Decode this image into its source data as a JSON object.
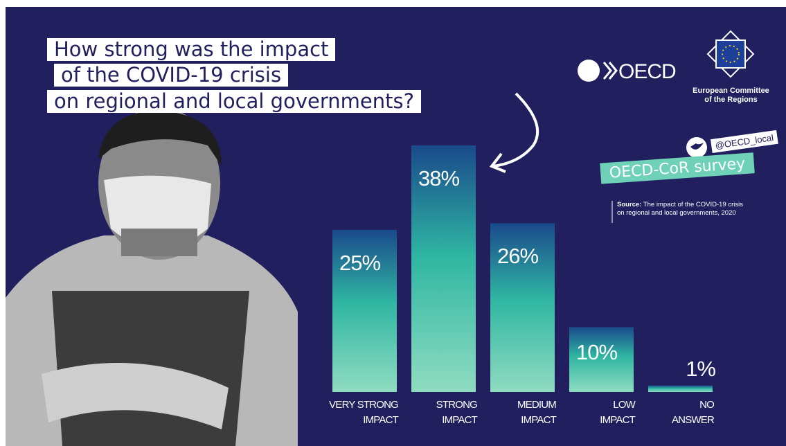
{
  "title": [
    "How strong was the impact",
    "of the COVID-19 crisis",
    "on regional and local governments?"
  ],
  "logos": {
    "oecd": "OECD",
    "cor": "European Committee\nof the Regions"
  },
  "twitter_handle": "@OECD_local",
  "survey": "OECD-CoR survey",
  "source_label": "Source:",
  "source_text": "The impact of the COVID-19 crisis\non regional and local governments, 2020",
  "chart_data": {
    "type": "bar",
    "categories": [
      "VERY STRONG\nIMPACT",
      "STRONG\nIMPACT",
      "MEDIUM\nIMPACT",
      "LOW\nIMPACT",
      "NO\nANSWER"
    ],
    "values": [
      25,
      38,
      26,
      10,
      1
    ],
    "value_labels": [
      "25%",
      "38%",
      "26%",
      "10%",
      "1%"
    ],
    "colors": [
      "#1a4a8c",
      "#2fb6a2",
      "#8fdcc0"
    ]
  }
}
